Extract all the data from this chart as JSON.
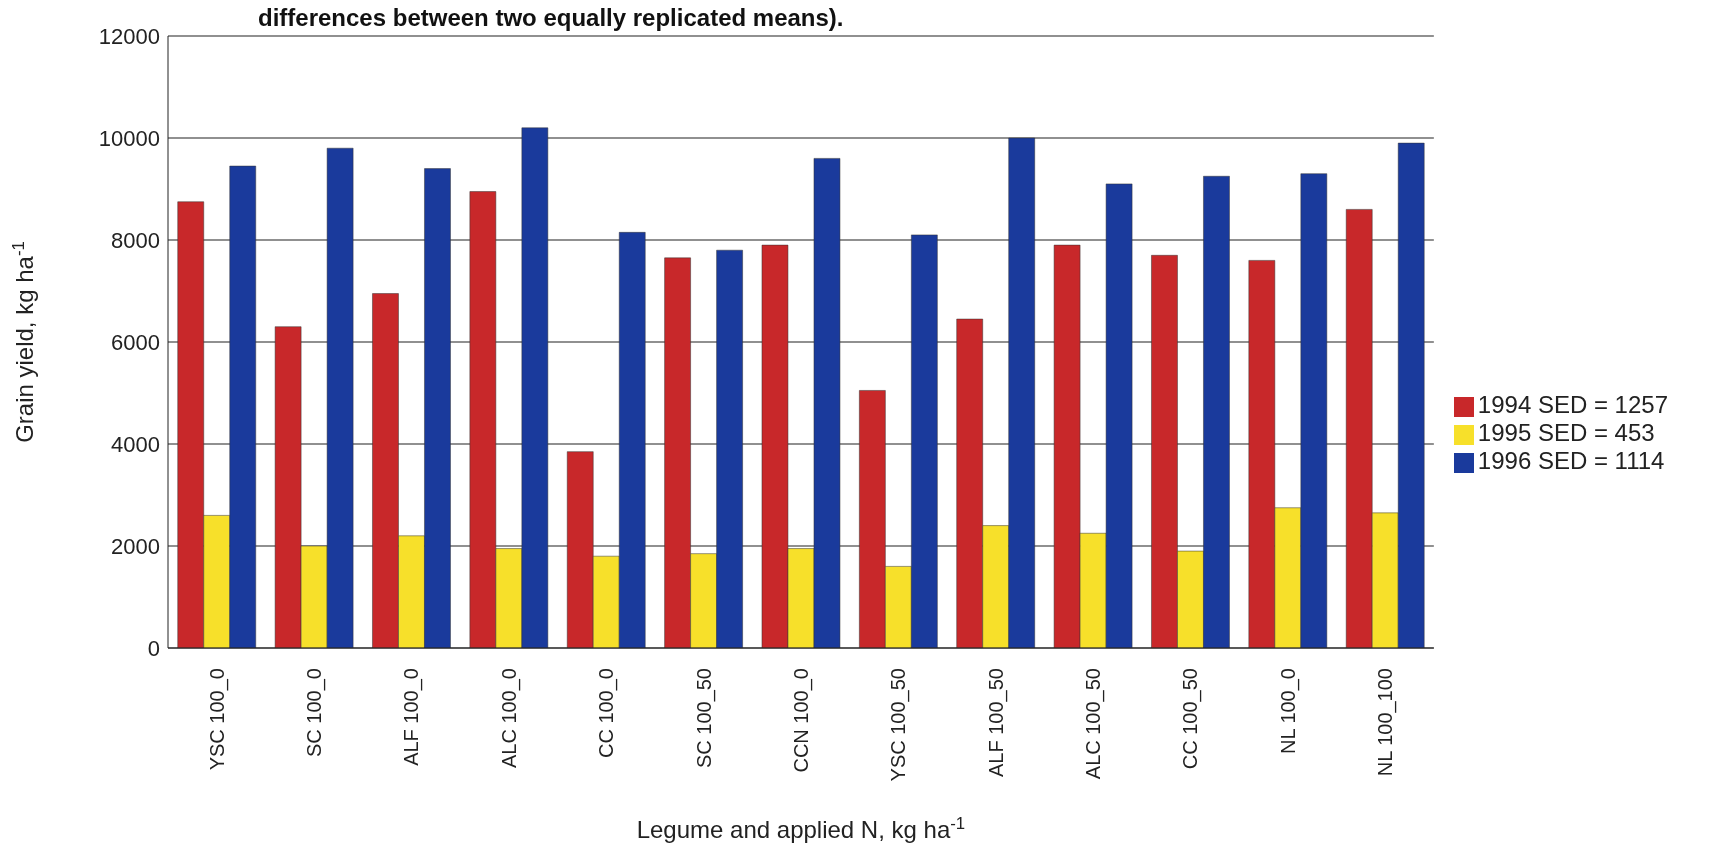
{
  "chart_data": {
    "type": "bar",
    "title": "differences between two equally replicated means).",
    "xlabel": "Legume and applied N, kg ha$^{-1}$",
    "ylabel": "Grain yield, kg ha$^{-1}$",
    "categories": [
      "YSC 100_0",
      "SC 100_0",
      "ALF 100_0",
      "ALC 100_0",
      "CC 100_0",
      "SC 100_50",
      "CCN 100_0",
      "YSC 100_50",
      "ALF 100_50",
      "ALC 100_50",
      "CC 100_50",
      "NL 100_0",
      "NL 100_100"
    ],
    "series": [
      {
        "name": "1994 SED = 1257",
        "color": "#c8282a",
        "values": [
          8750,
          6300,
          6950,
          8950,
          3850,
          7650,
          7900,
          5050,
          6450,
          7900,
          7700,
          7600,
          8600
        ]
      },
      {
        "name": "1995 SED = 453",
        "color": "#f7e02a",
        "values": [
          2600,
          2000,
          2200,
          1950,
          1800,
          1850,
          1950,
          1600,
          2400,
          2250,
          1900,
          2750,
          2650
        ]
      },
      {
        "name": "1996 SED = 1114",
        "color": "#1a3a9c",
        "values": [
          9450,
          9800,
          9400,
          10200,
          8150,
          7800,
          9600,
          8100,
          10000,
          9100,
          9250,
          9300,
          9900
        ]
      }
    ],
    "ylim": [
      0,
      12000
    ],
    "yticks": [
      0,
      2000,
      4000,
      6000,
      8000,
      10000,
      12000
    ],
    "grid": "y",
    "legend": "right"
  }
}
